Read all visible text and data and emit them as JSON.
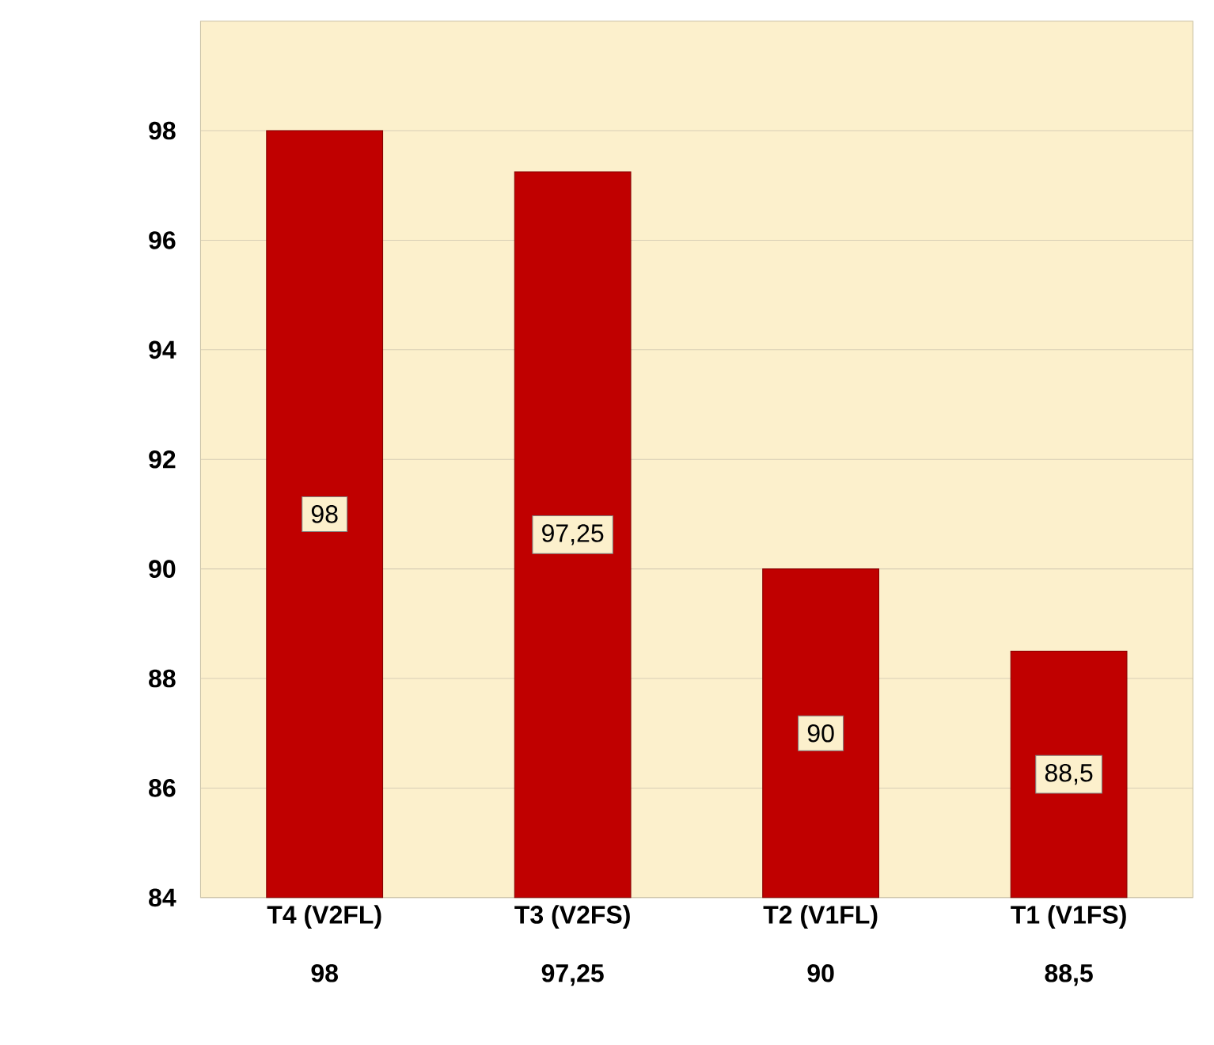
{
  "chart_data": {
    "type": "bar",
    "categories": [
      "T4 (V2FL)",
      "T3 (V2FS)",
      "T2 (V1FL)",
      "T1 (V1FS)"
    ],
    "values": [
      98,
      97.25,
      90,
      88.5
    ],
    "value_labels": [
      "98",
      "97,25",
      "90",
      "88,5"
    ],
    "color": "#c00000",
    "ylim": [
      84,
      100
    ],
    "yticks": [
      84,
      86,
      88,
      90,
      92,
      94,
      96,
      98
    ],
    "grid": "y"
  }
}
